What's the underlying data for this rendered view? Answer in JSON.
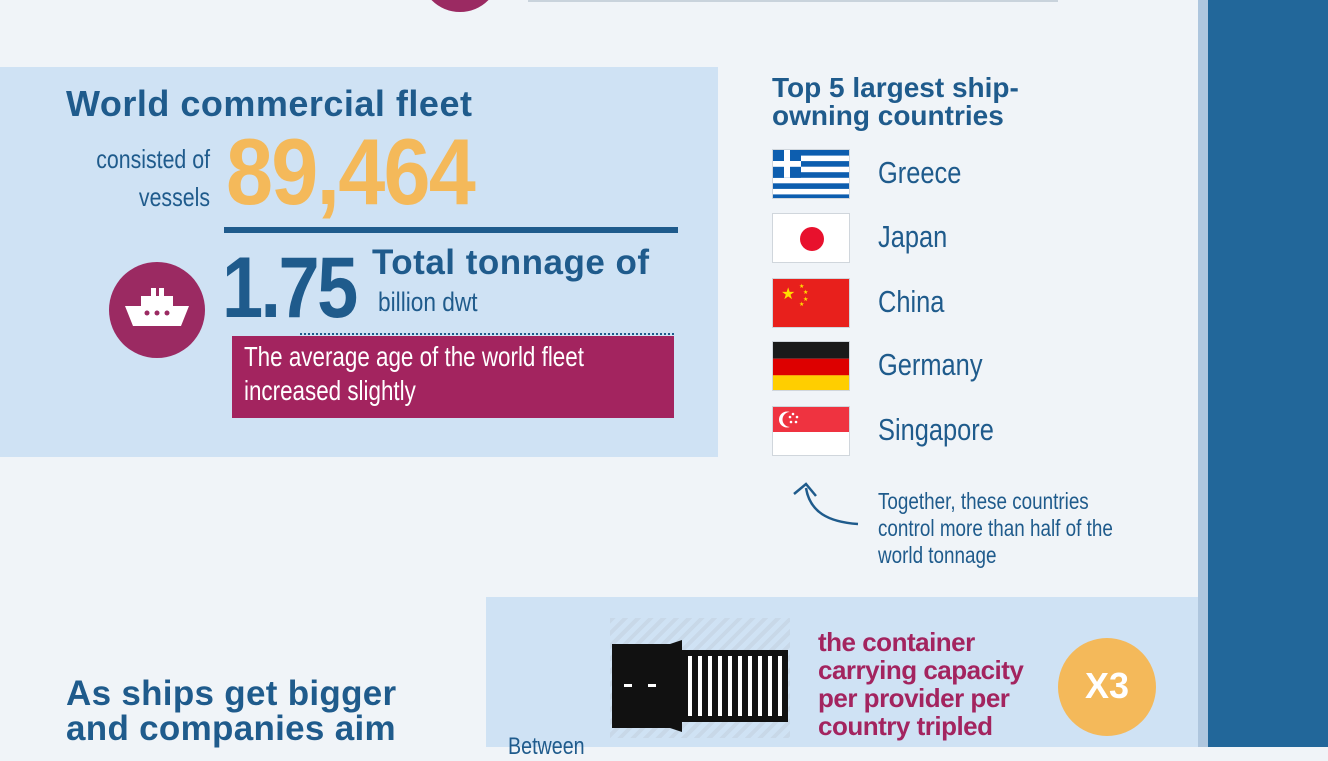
{
  "fleet": {
    "title": "World commercial fleet",
    "consisted_line1": "consisted of",
    "consisted_line2": "vessels",
    "vessel_count": "89,464",
    "tonnage_value": "1.75",
    "tonnage_label": "Total tonnage of",
    "tonnage_unit": "billion dwt",
    "age_line1": "The average age of the world fleet",
    "age_line2": "increased slightly",
    "icon": "ship-icon"
  },
  "top5": {
    "title_line1": "Top 5 largest ship-",
    "title_line2": "owning countries",
    "countries": [
      {
        "name": "Greece",
        "flag": "greece-flag-icon"
      },
      {
        "name": "Japan",
        "flag": "japan-flag-icon"
      },
      {
        "name": "China",
        "flag": "china-flag-icon"
      },
      {
        "name": "Germany",
        "flag": "germany-flag-icon"
      },
      {
        "name": "Singapore",
        "flag": "singapore-flag-icon"
      }
    ],
    "note_line1": "Together, these countries",
    "note_line2": "control more than half of the",
    "note_line3": "world tonnage"
  },
  "container": {
    "line1": "the container",
    "line2": "carrying capacity",
    "line3": "per provider per",
    "line4": "country tripled",
    "badge": "X3",
    "between": "Between",
    "icon": "shipping-container-icon"
  },
  "bigger": {
    "line1": "As ships get bigger",
    "line2": "and companies aim"
  },
  "colors": {
    "navy": "#1f5b8c",
    "magenta": "#a3245f",
    "gold": "#f4b95a",
    "panel": "#cfe2f4",
    "background": "#f0f4f8",
    "band": "#22679a"
  }
}
